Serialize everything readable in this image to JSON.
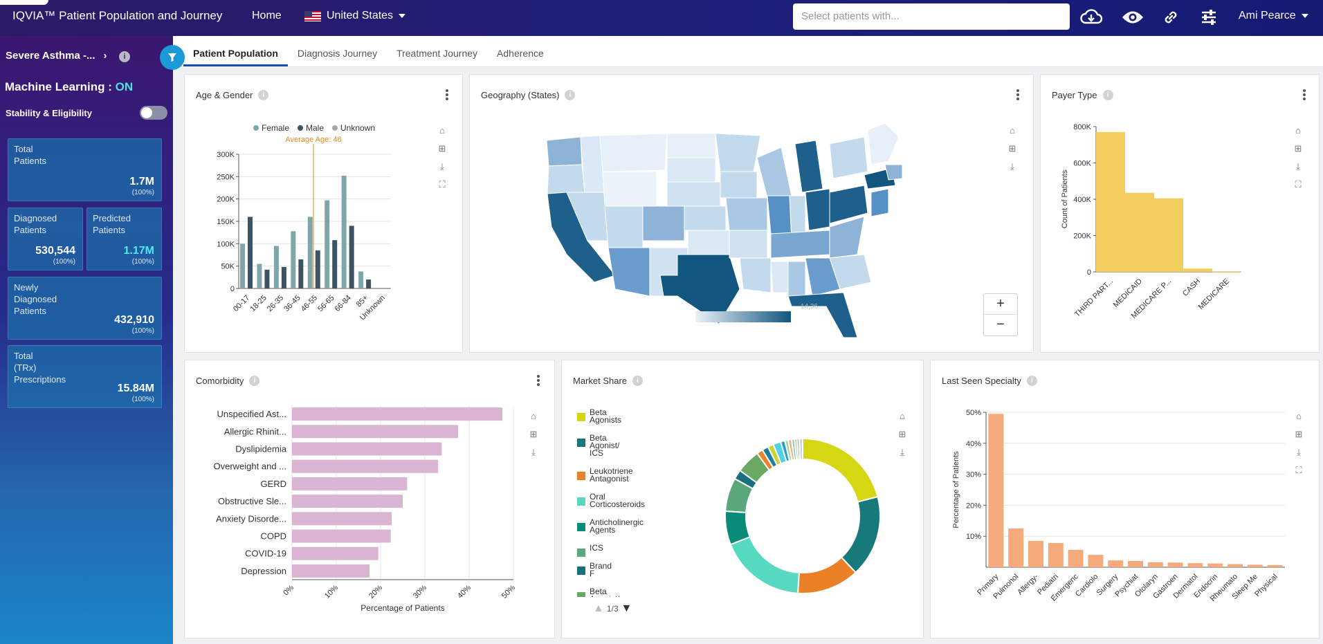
{
  "header": {
    "app_title": "IQVIA™ Patient Population and Journey",
    "nav_home": "Home",
    "country": "United States",
    "search_placeholder": "Select patients with...",
    "user_name": "Ami Pearce",
    "icons": [
      "cloud-download-icon",
      "eye-icon",
      "link-icon",
      "sliders-icon"
    ]
  },
  "sidebar": {
    "cohort": "Severe Asthma -...",
    "ml_label": "Machine Learning : ",
    "ml_state": "ON",
    "stability_label": "Stability & Eligibility",
    "cards": {
      "total": {
        "label": "Total\nPatients",
        "value": "1.7M",
        "pct": "(100%)"
      },
      "diagnosed": {
        "label": "Diagnosed\nPatients",
        "value": "530,544",
        "pct": "(100%)"
      },
      "predicted": {
        "label": "Predicted\nPatients",
        "value": "1.17M",
        "pct": "(100%)"
      },
      "newly": {
        "label": "Newly\nDiagnosed\nPatients",
        "value": "432,910",
        "pct": "(100%)"
      },
      "trx": {
        "label": "Total\n(TRx)\nPrescriptions",
        "value": "15.84M",
        "pct": "(100%)"
      }
    }
  },
  "tabs": [
    "Patient Population",
    "Diagnosis Journey",
    "Treatment Journey",
    "Adherence"
  ],
  "panels": {
    "age_gender": "Age & Gender",
    "geography": "Geography (States)",
    "payer": "Payer Type",
    "comorbidity": "Comorbidity",
    "market_share": "Market Share",
    "last_seen": "Last Seen Specialty"
  },
  "map": {
    "zoom_in": "+",
    "zoom_out": "−",
    "scale_max": "14,36..."
  },
  "market_share_pager": "1/3",
  "chart_data": [
    {
      "id": "age_gender",
      "type": "bar",
      "title": "Age & Gender",
      "categories": [
        "00-17",
        "18-25",
        "26-35",
        "36-45",
        "46-55",
        "56-65",
        "66-84",
        "85+",
        "Unknown"
      ],
      "series": [
        {
          "name": "Female",
          "color": "#7fa6a8",
          "values": [
            100000,
            55000,
            95000,
            128000,
            160000,
            197000,
            252000,
            38000,
            0
          ]
        },
        {
          "name": "Male",
          "color": "#3e5460",
          "values": [
            160000,
            42000,
            48000,
            65000,
            85000,
            108000,
            140000,
            20000,
            0
          ]
        },
        {
          "name": "Unknown",
          "color": "#a9a9a9",
          "values": [
            0,
            0,
            0,
            0,
            0,
            0,
            0,
            0,
            0
          ]
        }
      ],
      "yticks": [
        "0",
        "50K",
        "100K",
        "150K",
        "200K",
        "250K",
        "300K"
      ],
      "ylim": [
        0,
        300000
      ],
      "annotation": "Average Age: 48",
      "annotation_category": "46-55"
    },
    {
      "id": "payer",
      "type": "bar",
      "title": "Payer Type",
      "categories": [
        "THIRD PART...",
        "MEDICAID",
        "MEDICARE P...",
        "CASH",
        "MEDICARE"
      ],
      "values": [
        770000,
        435000,
        405000,
        18000,
        3000
      ],
      "ylabel": "Count of Patients",
      "yticks": [
        "0",
        "200K",
        "400K",
        "600K",
        "800K"
      ],
      "ylim": [
        0,
        800000
      ],
      "color": "#f2cc5c"
    },
    {
      "id": "comorbidity",
      "type": "bar",
      "orientation": "horizontal",
      "title": "Comorbidity",
      "categories": [
        "Unspecified Ast...",
        "Allergic Rhinit...",
        "Dyslipidemia",
        "Overweight and ...",
        "GERD",
        "Obstructive Sle...",
        "Anxiety Disorde...",
        "COPD",
        "COVID-19",
        "Depression"
      ],
      "values": [
        47.5,
        37.5,
        33.8,
        33,
        26,
        25,
        22.5,
        22.3,
        19.5,
        17.5
      ],
      "xlabel": "Percentage of Patients",
      "xticks": [
        "0%",
        "10%",
        "20%",
        "30%",
        "40%",
        "50%"
      ],
      "xlim": [
        0,
        50
      ],
      "color": "#d9b5d3"
    },
    {
      "id": "market_share",
      "type": "pie",
      "title": "Market Share",
      "legend": [
        {
          "name": "Beta\nAgonists",
          "color": "#d4d711"
        },
        {
          "name": "Beta\nAgonist/\nICS",
          "color": "#177a7a"
        },
        {
          "name": "Leukotriene\nAntagonist",
          "color": "#ea8127"
        },
        {
          "name": "Oral\nCorticosteroids",
          "color": "#56d9c0"
        },
        {
          "name": "Anticholinergic\nAgents",
          "color": "#0a8a78"
        },
        {
          "name": "ICS",
          "color": "#5aa77c"
        },
        {
          "name": "Brand\nF",
          "color": "#1b6f7c"
        },
        {
          "name": "Beta\nAgonist/",
          "color": "#6aa864"
        }
      ],
      "slices": [
        {
          "color": "#d4d711",
          "value": 21
        },
        {
          "color": "#177a7a",
          "value": 17
        },
        {
          "color": "#ea8127",
          "value": 13
        },
        {
          "color": "#56d9c0",
          "value": 18
        },
        {
          "color": "#0a8a78",
          "value": 7
        },
        {
          "color": "#5aa77c",
          "value": 7
        },
        {
          "color": "#1b6f7c",
          "value": 2
        },
        {
          "color": "#6aa864",
          "value": 5
        },
        {
          "color": "#e8842c",
          "value": 1.3
        },
        {
          "color": "#1f7fa0",
          "value": 1.3
        },
        {
          "color": "#c9d42c",
          "value": 1.2
        },
        {
          "color": "#4fd1e6",
          "value": 1.6
        },
        {
          "color": "#2aa0c4",
          "value": 0.9
        },
        {
          "color": "#9bd9a8",
          "value": 0.7
        },
        {
          "color": "#f1b06b",
          "value": 0.7
        },
        {
          "color": "#7ec8c8",
          "value": 0.6
        },
        {
          "color": "#b5c98a",
          "value": 0.5
        },
        {
          "color": "#8fb6c9",
          "value": 0.5
        },
        {
          "color": "#d1d1d1",
          "value": 0.7
        }
      ]
    },
    {
      "id": "last_seen",
      "type": "bar",
      "title": "Last Seen Specialty",
      "categories": [
        "Primary",
        "Pulmonol",
        "Allergy-",
        "Pediatri",
        "Emergenc",
        "Cardiolo",
        "Surgery",
        "Psychiat",
        "Otolaryn",
        "Gastroen",
        "Dermatol",
        "Endocrin",
        "Rheumato",
        "Sleep Me",
        "Physical"
      ],
      "values": [
        49.5,
        12.5,
        8.5,
        7.8,
        5.6,
        4,
        2.2,
        2,
        1.6,
        1.5,
        1.3,
        1.2,
        1,
        0.8,
        0.7
      ],
      "ylabel": "Percentage of Patients",
      "yticks": [
        "10%",
        "20%",
        "30%",
        "40%",
        "50%"
      ],
      "ylim": [
        0,
        50
      ],
      "color": "#f5aa7c"
    },
    {
      "id": "geography",
      "type": "heatmap",
      "title": "Geography (States)",
      "description_scale": [
        "#eaf2fa",
        "#12557e"
      ],
      "scale_label": "14,36..."
    }
  ]
}
